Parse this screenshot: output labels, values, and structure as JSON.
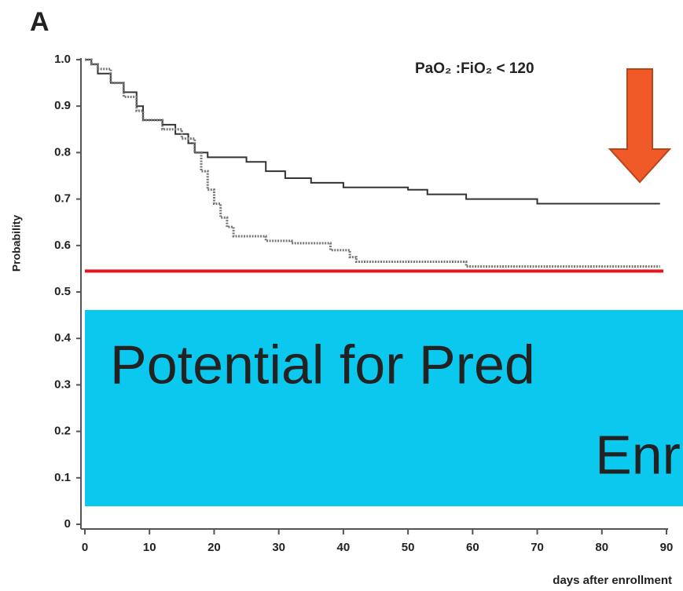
{
  "chart_data": {
    "type": "line",
    "panel_label": "A",
    "annotation": "PaO₂ :FiO₂ < 120",
    "y_label": "Probability",
    "x_label": "days after enrollment",
    "xlim": [
      0,
      90
    ],
    "ylim": [
      0,
      1
    ],
    "xticks": [
      0,
      10,
      20,
      30,
      40,
      50,
      60,
      70,
      80,
      90
    ],
    "yticks": [
      0,
      0.1,
      0.2,
      0.3,
      0.4,
      0.5,
      0.6,
      0.7,
      0.8,
      0.9,
      {
        "value": 1,
        "label": "1.0"
      }
    ],
    "step": true,
    "series": [
      {
        "color": "#333333",
        "dash": false,
        "x": [
          0,
          1,
          2,
          4,
          6,
          8,
          9,
          12,
          14,
          16,
          17,
          19,
          25,
          28,
          31,
          35,
          40,
          50,
          53,
          59,
          70,
          89
        ],
        "values": [
          1.0,
          0.99,
          0.97,
          0.95,
          0.93,
          0.9,
          0.87,
          0.86,
          0.84,
          0.82,
          0.8,
          0.79,
          0.78,
          0.76,
          0.745,
          0.735,
          0.725,
          0.72,
          0.71,
          0.7,
          0.69,
          0.69
        ]
      },
      {
        "color": "#777777",
        "dash": true,
        "x": [
          0,
          1,
          2,
          4,
          6,
          8,
          9,
          12,
          15,
          17,
          18,
          19,
          20,
          21,
          22,
          23,
          28,
          32,
          38,
          41,
          42,
          59,
          89
        ],
        "values": [
          1.0,
          0.99,
          0.98,
          0.95,
          0.92,
          0.89,
          0.87,
          0.85,
          0.83,
          0.8,
          0.76,
          0.72,
          0.69,
          0.66,
          0.64,
          0.62,
          0.61,
          0.605,
          0.59,
          0.575,
          0.565,
          0.555,
          0.555
        ]
      }
    ],
    "reference_line": {
      "value": 0.545,
      "color": "#e8141c"
    },
    "overlay": {
      "color": "#0bc8ef",
      "lines": [
        "Potential for Pred",
        "Enr"
      ]
    }
  }
}
